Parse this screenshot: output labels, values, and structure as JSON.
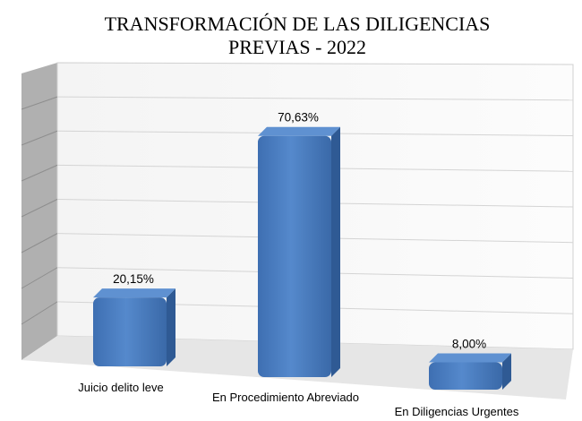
{
  "chart_data": {
    "type": "bar",
    "title": "TRANSFORMACIÓN DE LAS DILIGENCIAS PREVIAS - 2022",
    "title_lines": [
      "TRANSFORMACIÓN DE LAS DILIGENCIAS",
      "PREVIAS - 2022"
    ],
    "categories": [
      "Juicio delito leve",
      "En Procedimiento Abreviado",
      "En Diligencias Urgentes"
    ],
    "values": [
      20.15,
      70.63,
      8.0
    ],
    "data_labels": [
      "20,15%",
      "70,63%",
      "8,00%"
    ],
    "ylim": [
      0,
      80
    ],
    "grid": true,
    "legend": "none",
    "style": "3d-column",
    "bar_color": "#4a7cc0"
  }
}
